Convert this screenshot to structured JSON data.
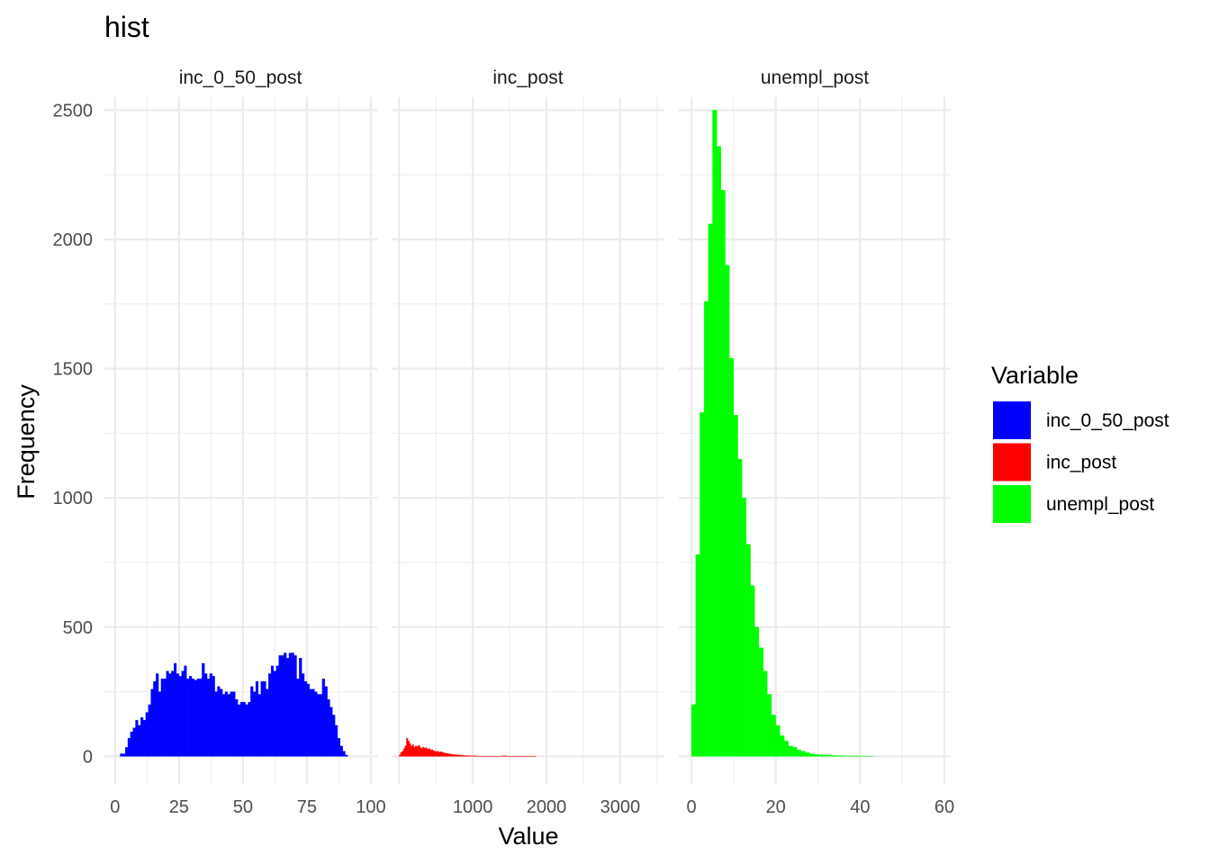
{
  "chart_data": {
    "type": "bar",
    "title": "hist",
    "xlabel": "Value",
    "ylabel": "Frequency",
    "grid": true,
    "y_range": [
      -110,
      2550
    ],
    "y_ticks": [
      0,
      500,
      1000,
      1500,
      2000,
      2500
    ],
    "legend": {
      "title": "Variable",
      "position": "right",
      "entries": [
        {
          "label": "inc_0_50_post",
          "color": "#0000ff"
        },
        {
          "label": "inc_post",
          "color": "#ff0000"
        },
        {
          "label": "unempl_post",
          "color": "#00ff00"
        }
      ]
    },
    "panels": [
      {
        "name": "inc_0_50_post",
        "color": "#0000ff",
        "x_range": [
          -4.5,
          102.5
        ],
        "x_ticks": [
          0,
          25,
          50,
          75,
          100
        ],
        "bin_start": 2.0,
        "bin_width": 1.0,
        "values": [
          10,
          10,
          35,
          70,
          95,
          110,
          140,
          120,
          150,
          140,
          170,
          200,
          260,
          290,
          320,
          250,
          300,
          300,
          330,
          320,
          330,
          360,
          320,
          310,
          330,
          350,
          300,
          310,
          300,
          295,
          300,
          300,
          360,
          320,
          300,
          320,
          310,
          250,
          270,
          260,
          240,
          250,
          240,
          250,
          250,
          220,
          200,
          210,
          210,
          200,
          210,
          270,
          250,
          290,
          240,
          290,
          290,
          260,
          320,
          350,
          330,
          350,
          390,
          390,
          400,
          380,
          400,
          400,
          390,
          300,
          380,
          320,
          290,
          280,
          260,
          260,
          250,
          240,
          240,
          300,
          270,
          220,
          190,
          160,
          120,
          70,
          40,
          20,
          5
        ]
      },
      {
        "name": "inc_post",
        "color": "#ff0000",
        "x_range": [
          -100,
          3600
        ],
        "x_ticks": [
          1000,
          2000,
          3000
        ],
        "bin_start": 0,
        "bin_width": 20,
        "values": [
          5,
          15,
          20,
          30,
          40,
          70,
          60,
          50,
          40,
          45,
          35,
          40,
          38,
          42,
          35,
          30,
          36,
          32,
          34,
          28,
          30,
          25,
          26,
          22,
          20,
          18,
          20,
          16,
          18,
          15,
          14,
          12,
          12,
          10,
          10,
          8,
          8,
          7,
          6,
          6,
          5,
          5,
          4,
          4,
          3,
          3,
          3,
          2,
          2,
          2,
          2,
          2,
          1,
          1,
          1,
          1,
          1,
          1,
          1,
          1,
          1,
          1,
          1,
          1,
          1,
          1,
          1,
          1,
          1,
          1,
          2,
          2,
          2,
          1,
          1,
          1,
          1,
          1,
          1,
          1,
          1,
          1,
          1,
          1,
          1,
          1,
          1,
          1,
          1,
          1,
          1,
          1,
          1
        ]
      },
      {
        "name": "unempl_post",
        "color": "#00ff00",
        "x_range": [
          -3,
          61.5
        ],
        "x_ticks": [
          0,
          20,
          40,
          60
        ],
        "bin_start": 0,
        "bin_width": 1,
        "values": [
          200,
          780,
          1330,
          1760,
          2060,
          2500,
          2360,
          2190,
          1900,
          1540,
          1320,
          1150,
          1000,
          820,
          660,
          500,
          420,
          330,
          240,
          160,
          120,
          80,
          60,
          40,
          35,
          25,
          20,
          15,
          10,
          8,
          6,
          5,
          5,
          4,
          3,
          3,
          2,
          2,
          2,
          2,
          1,
          1,
          1
        ]
      }
    ]
  }
}
